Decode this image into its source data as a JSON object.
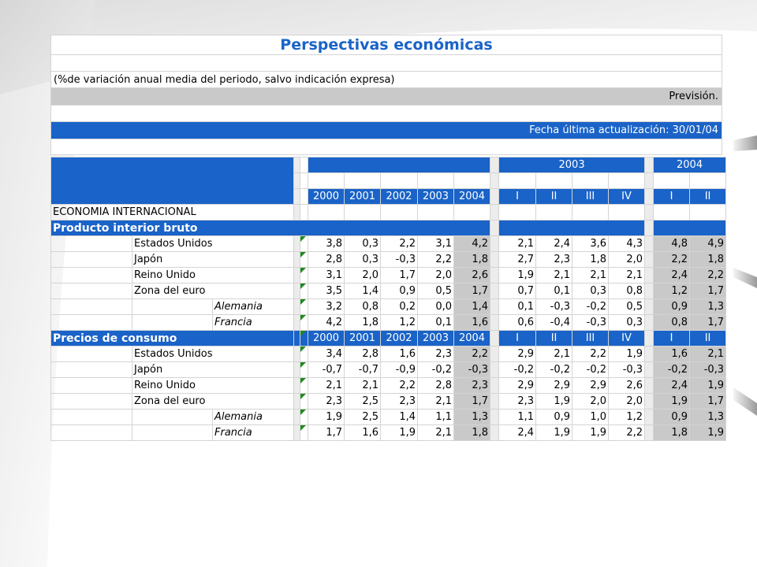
{
  "title": "Perspectivas económicas",
  "note": "(%de variación anual media del periodo, salvo indicación expresa)",
  "forecast_label": "Previsión.",
  "update_label": "Fecha última actualización: 30/01/04",
  "years_header": {
    "y2003": "2003",
    "y2004": "2004"
  },
  "columns": {
    "annual": [
      "2000",
      "2001",
      "2002",
      "2003",
      "2004"
    ],
    "q2003": [
      "I",
      "II",
      "III",
      "IV"
    ],
    "q2004": [
      "I",
      "II"
    ]
  },
  "section_main": "ECONOMIA INTERNACIONAL",
  "sections": [
    {
      "name": "Producto interior bruto",
      "rows": [
        {
          "label": "Estados Unidos",
          "sub": false,
          "annual": [
            "3,8",
            "0,3",
            "2,2",
            "3,1",
            "4,2"
          ],
          "q2003": [
            "2,1",
            "2,4",
            "3,6",
            "4,3"
          ],
          "q2004": [
            "4,8",
            "4,9"
          ]
        },
        {
          "label": "Japón",
          "sub": false,
          "annual": [
            "2,8",
            "0,3",
            "-0,3",
            "2,2",
            "1,8"
          ],
          "q2003": [
            "2,7",
            "2,3",
            "1,8",
            "2,0"
          ],
          "q2004": [
            "2,2",
            "1,8"
          ]
        },
        {
          "label": "Reino Unido",
          "sub": false,
          "annual": [
            "3,1",
            "2,0",
            "1,7",
            "2,0",
            "2,6"
          ],
          "q2003": [
            "1,9",
            "2,1",
            "2,1",
            "2,1"
          ],
          "q2004": [
            "2,4",
            "2,2"
          ]
        },
        {
          "label": "Zona del euro",
          "sub": false,
          "annual": [
            "3,5",
            "1,4",
            "0,9",
            "0,5",
            "1,7"
          ],
          "q2003": [
            "0,7",
            "0,1",
            "0,3",
            "0,8"
          ],
          "q2004": [
            "1,2",
            "1,7"
          ]
        },
        {
          "label": "Alemania",
          "sub": true,
          "annual": [
            "3,2",
            "0,8",
            "0,2",
            "0,0",
            "1,4"
          ],
          "q2003": [
            "0,1",
            "-0,3",
            "-0,2",
            "0,5"
          ],
          "q2004": [
            "0,9",
            "1,3"
          ]
        },
        {
          "label": "Francia",
          "sub": true,
          "annual": [
            "4,2",
            "1,8",
            "1,2",
            "0,1",
            "1,6"
          ],
          "q2003": [
            "0,6",
            "-0,4",
            "-0,3",
            "0,3"
          ],
          "q2004": [
            "0,8",
            "1,7"
          ]
        }
      ]
    },
    {
      "name": "Precios de consumo",
      "rows": [
        {
          "label": "Estados Unidos",
          "sub": false,
          "annual": [
            "3,4",
            "2,8",
            "1,6",
            "2,3",
            "2,2"
          ],
          "q2003": [
            "2,9",
            "2,1",
            "2,2",
            "1,9"
          ],
          "q2004": [
            "1,6",
            "2,1"
          ]
        },
        {
          "label": "Japón",
          "sub": false,
          "annual": [
            "-0,7",
            "-0,7",
            "-0,9",
            "-0,2",
            "-0,3"
          ],
          "q2003": [
            "-0,2",
            "-0,2",
            "-0,2",
            "-0,3"
          ],
          "q2004": [
            "-0,2",
            "-0,3"
          ]
        },
        {
          "label": "Reino Unido",
          "sub": false,
          "annual": [
            "2,1",
            "2,1",
            "2,2",
            "2,8",
            "2,3"
          ],
          "q2003": [
            "2,9",
            "2,9",
            "2,9",
            "2,6"
          ],
          "q2004": [
            "2,4",
            "1,9"
          ]
        },
        {
          "label": "Zona del euro",
          "sub": false,
          "annual": [
            "2,3",
            "2,5",
            "2,3",
            "2,1",
            "1,7"
          ],
          "q2003": [
            "2,3",
            "1,9",
            "2,0",
            "2,0"
          ],
          "q2004": [
            "1,9",
            "1,7"
          ]
        },
        {
          "label": "Alemania",
          "sub": true,
          "annual": [
            "1,9",
            "2,5",
            "1,4",
            "1,1",
            "1,3"
          ],
          "q2003": [
            "1,1",
            "0,9",
            "1,0",
            "1,2"
          ],
          "q2004": [
            "0,9",
            "1,3"
          ]
        },
        {
          "label": "Francia",
          "sub": true,
          "annual": [
            "1,7",
            "1,6",
            "1,9",
            "2,1",
            "1,8"
          ],
          "q2003": [
            "2,4",
            "1,9",
            "1,9",
            "2,2"
          ],
          "q2004": [
            "1,8",
            "1,9"
          ]
        }
      ]
    }
  ],
  "colors": {
    "blue": "#1a63c8",
    "grey": "#c9c9c9",
    "flag": "#1f8a1f",
    "grid": "#d4d4d4"
  }
}
